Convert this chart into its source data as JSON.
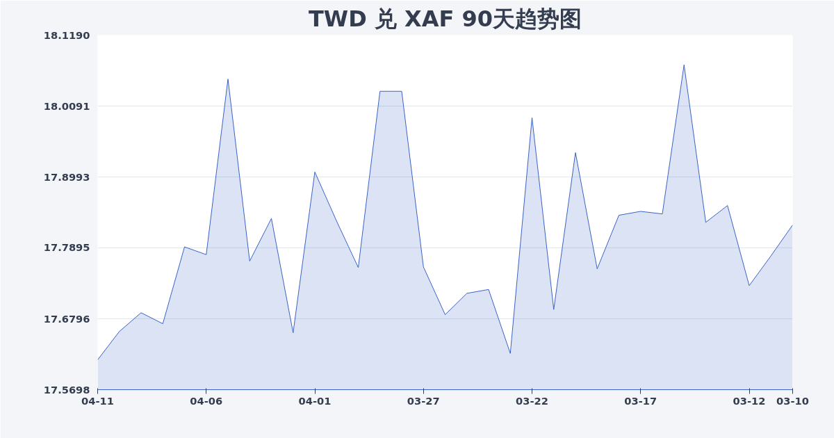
{
  "chart_data": {
    "type": "area",
    "title": "TWD 兑 XAF 90天趋势图",
    "categories": [
      "04-11",
      null,
      null,
      null,
      null,
      "04-06",
      null,
      null,
      null,
      null,
      "04-01",
      null,
      null,
      null,
      null,
      "03-27",
      null,
      null,
      null,
      null,
      "03-22",
      null,
      null,
      null,
      null,
      "03-17",
      null,
      null,
      null,
      null,
      "03-12",
      null,
      "03-10"
    ],
    "series": [
      {
        "color": "#3a62c8",
        "values": [
          17.616,
          17.66,
          17.689,
          17.672,
          17.791,
          17.779,
          18.051,
          17.769,
          17.835,
          17.658,
          17.907,
          17.831,
          17.759,
          18.032,
          18.032,
          17.76,
          17.686,
          17.719,
          17.725,
          17.626,
          17.991,
          17.694,
          17.937,
          17.757,
          17.84,
          17.846,
          17.842,
          18.073,
          17.829,
          17.855,
          17.731,
          17.777,
          17.825
        ]
      }
    ],
    "ylim": [
      17.5698,
      18.119
    ],
    "yticks": [
      17.5698,
      17.6796,
      17.7895,
      17.8993,
      18.0091,
      {
        "value": 18.119,
        "label": "18.1190"
      }
    ],
    "grid": "y"
  }
}
